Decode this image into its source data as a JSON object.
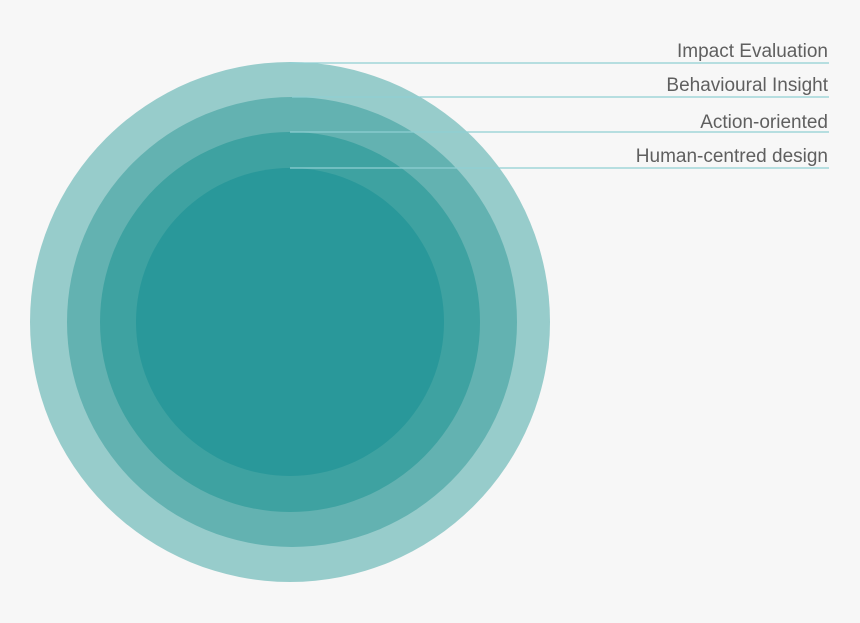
{
  "diagram": {
    "layers": [
      {
        "label": "Impact Evaluation",
        "color": "#97cccb"
      },
      {
        "label": "Behavioural Insight",
        "color": "#63b2b1"
      },
      {
        "label": "Action-oriented",
        "color": "#3ea2a1"
      },
      {
        "label": "Human-centred design",
        "color": "#29989a"
      }
    ],
    "leader_line_color": "#8fcfd2"
  }
}
